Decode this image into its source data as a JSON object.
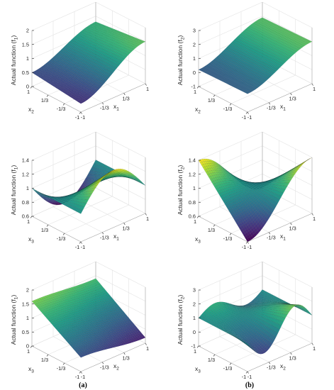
{
  "captions": [
    "(a)",
    "(b)"
  ],
  "chart_data": [
    {
      "type": "surface",
      "panel": "top-left",
      "zlabel": {
        "main": "Actual function",
        "paren_open": "(f",
        "sub": "1",
        "paren_close": ")"
      },
      "xlabel": {
        "main": "x",
        "sub": "1"
      },
      "ylabel": {
        "main": "x",
        "sub": "2"
      },
      "xticks": [
        "-1",
        "-1/3",
        "1/3",
        "1"
      ],
      "yticks": [
        "-1",
        "-1/3",
        "1/3",
        "1"
      ],
      "zticks": [
        "0",
        "0.5",
        "1",
        "1.5",
        "2"
      ],
      "zlim": [
        0,
        2
      ],
      "corner_values": {
        "x=-1,y=-1": 0.3,
        "x=1,y=-1": 1.5,
        "x=1,y=1": 1.3,
        "x=-1,y=1": 0.5
      },
      "colormap": "viridis"
    },
    {
      "type": "surface",
      "panel": "top-right",
      "zlabel": {
        "main": "Actual function",
        "paren_open": "(f",
        "sub": "2",
        "paren_close": ")"
      },
      "xlabel": {
        "main": "x",
        "sub": "1"
      },
      "ylabel": {
        "main": "x",
        "sub": "2"
      },
      "xticks": [
        "-1",
        "-1/3",
        "1/3",
        "1"
      ],
      "yticks": [
        "-1",
        "-1/3",
        "1/3",
        "1"
      ],
      "zticks": [
        "-1",
        "0",
        "1",
        "2",
        "3"
      ],
      "zlim": [
        -1,
        3
      ],
      "corner_values": {
        "x=-1,y=-1": 0.3,
        "x=1,y=-1": 2.0,
        "x=1,y=1": 1.9,
        "x=-1,y=1": 0.2
      },
      "colormap": "viridis"
    },
    {
      "type": "surface",
      "panel": "middle-left",
      "zlabel": {
        "main": "Actual function",
        "paren_open": "(f",
        "sub": "1",
        "paren_close": ")"
      },
      "xlabel": {
        "main": "x",
        "sub": "1"
      },
      "ylabel": {
        "main": "x",
        "sub": "3"
      },
      "xticks": [
        "-1",
        "-1/3",
        "1/3",
        "1"
      ],
      "yticks": [
        "-1",
        "-1/3",
        "1/3",
        "1"
      ],
      "zticks": [
        "0.6",
        "0.8",
        "1",
        "1.2",
        "1.4"
      ],
      "zlim": [
        0.6,
        1.4
      ],
      "peak_value": 1.42,
      "trough_value": 0.58,
      "colormap": "viridis"
    },
    {
      "type": "surface",
      "panel": "middle-right",
      "zlabel": {
        "main": "Actual function",
        "paren_open": "(f",
        "sub": "2",
        "paren_close": ")"
      },
      "xlabel": {
        "main": "x",
        "sub": "1"
      },
      "ylabel": {
        "main": "x",
        "sub": "3"
      },
      "xticks": [
        "-1",
        "-1/3",
        "1/3",
        "1"
      ],
      "yticks": [
        "-1",
        "-1/3",
        "1/3",
        "1"
      ],
      "zticks": [
        "0.6",
        "0.8",
        "1",
        "1.2",
        "1.4"
      ],
      "zlim": [
        0.6,
        1.4
      ],
      "peak_value": 1.4,
      "trough_value": 0.6,
      "colormap": "viridis"
    },
    {
      "type": "surface",
      "panel": "bottom-left",
      "zlabel": {
        "main": "Actual function",
        "paren_open": "(f",
        "sub": "1",
        "paren_close": ")"
      },
      "xlabel": {
        "main": "x",
        "sub": "2"
      },
      "ylabel": {
        "main": "x",
        "sub": "3"
      },
      "xticks": [
        "-1",
        "-1/3",
        "1/3",
        "1"
      ],
      "yticks": [
        "-1",
        "-1/3",
        "1/3",
        "1"
      ],
      "zticks": [
        "0",
        "0.5",
        "1",
        "1.5",
        "2"
      ],
      "zlim": [
        0,
        2
      ],
      "corner_values": {
        "x=-1,y=-1": 0.5,
        "x=1,y=-1": 0.2,
        "x=1,y=1": 1.4,
        "x=-1,y=1": 1.6
      },
      "colormap": "viridis"
    },
    {
      "type": "surface",
      "panel": "bottom-right",
      "zlabel": {
        "main": "Actual function",
        "paren_open": "(f",
        "sub": "2",
        "paren_close": ")"
      },
      "xlabel": {
        "main": "x",
        "sub": "2"
      },
      "ylabel": {
        "main": "x",
        "sub": "3"
      },
      "xticks": [
        "-1",
        "-1/3",
        "1/3",
        "1"
      ],
      "yticks": [
        "-1",
        "-1/3",
        "1/3",
        "1"
      ],
      "zticks": [
        "-1",
        "0",
        "1",
        "2",
        "3"
      ],
      "zlim": [
        -1,
        3
      ],
      "wave_amplitude": 1.1,
      "wave_center": 1.0,
      "colormap": "viridis"
    }
  ]
}
